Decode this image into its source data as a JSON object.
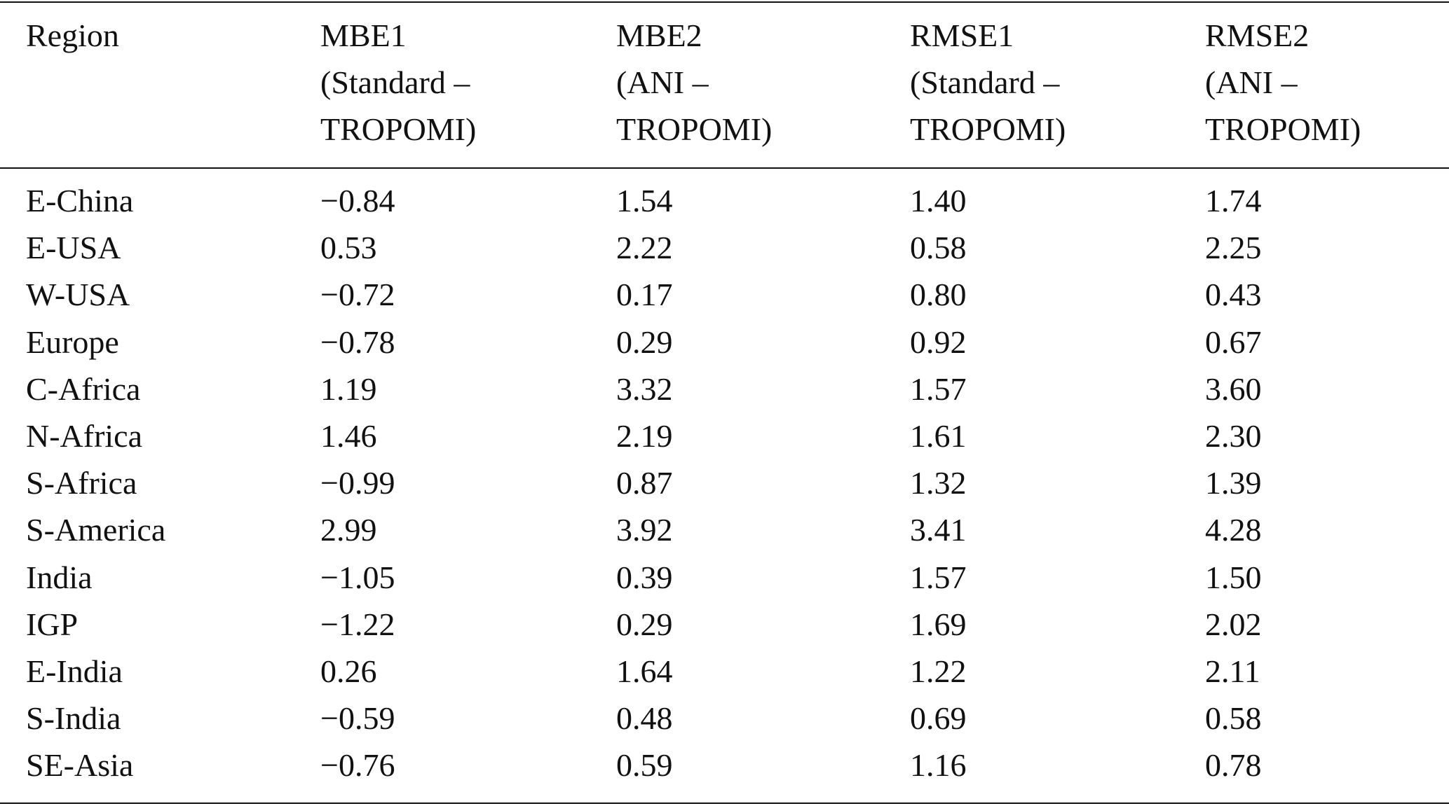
{
  "table": {
    "header": [
      [
        "Region"
      ],
      [
        "MBE1",
        "(Standard –",
        "TROPOMI)"
      ],
      [
        "MBE2",
        "(ANI –",
        "TROPOMI)"
      ],
      [
        "RMSE1",
        "(Standard –",
        "TROPOMI)"
      ],
      [
        "RMSE2",
        "(ANI –",
        "TROPOMI)"
      ]
    ],
    "rows": [
      [
        "E-China",
        "−0.84",
        "1.54",
        "1.40",
        "1.74"
      ],
      [
        "E-USA",
        "0.53",
        "2.22",
        "0.58",
        "2.25"
      ],
      [
        "W-USA",
        "−0.72",
        "0.17",
        "0.80",
        "0.43"
      ],
      [
        "Europe",
        "−0.78",
        "0.29",
        "0.92",
        "0.67"
      ],
      [
        "C-Africa",
        "1.19",
        "3.32",
        "1.57",
        "3.60"
      ],
      [
        "N-Africa",
        "1.46",
        "2.19",
        "1.61",
        "2.30"
      ],
      [
        "S-Africa",
        "−0.99",
        "0.87",
        "1.32",
        "1.39"
      ],
      [
        "S-America",
        "2.99",
        "3.92",
        "3.41",
        "4.28"
      ],
      [
        "India",
        "−1.05",
        "0.39",
        "1.57",
        "1.50"
      ],
      [
        "IGP",
        "−1.22",
        "0.29",
        "1.69",
        "2.02"
      ],
      [
        "E-India",
        "0.26",
        "1.64",
        "1.22",
        "2.11"
      ],
      [
        "S-India",
        "−0.59",
        "0.48",
        "0.69",
        "0.58"
      ],
      [
        "SE-Asia",
        "−0.76",
        "0.59",
        "1.16",
        "0.78"
      ]
    ]
  }
}
